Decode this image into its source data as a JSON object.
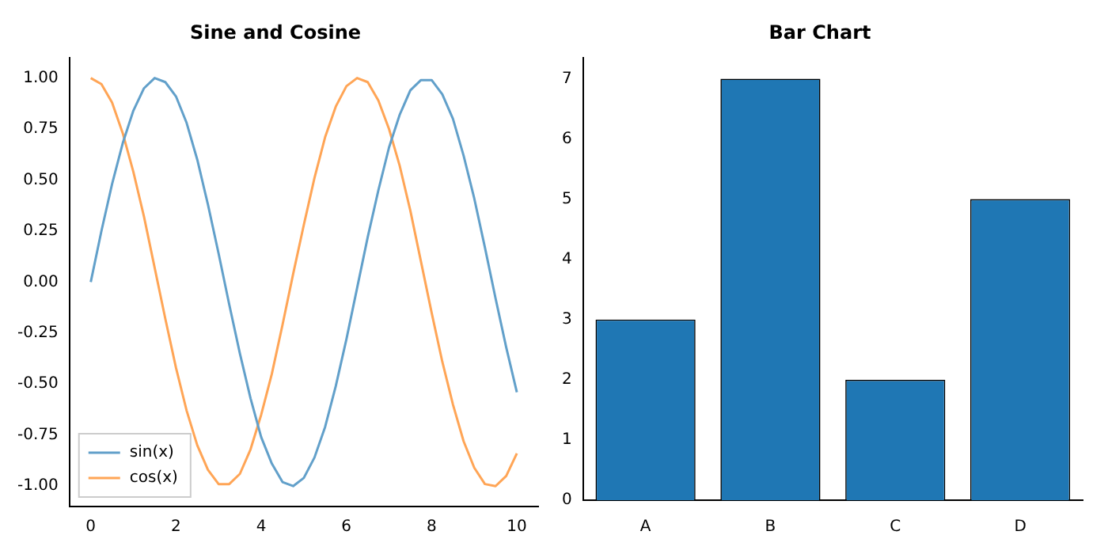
{
  "chart_data": [
    {
      "type": "line",
      "title": "Sine and Cosine",
      "x": [
        0,
        0.25,
        0.5,
        0.75,
        1,
        1.25,
        1.5,
        1.75,
        2,
        2.25,
        2.5,
        2.75,
        3,
        3.25,
        3.5,
        3.75,
        4,
        4.25,
        4.5,
        4.75,
        5,
        5.25,
        5.5,
        5.75,
        6,
        6.25,
        6.5,
        6.75,
        7,
        7.25,
        7.5,
        7.75,
        8,
        8.25,
        8.5,
        8.75,
        9,
        9.25,
        9.5,
        9.75,
        10
      ],
      "series": [
        {
          "name": "sin(x)",
          "color": "#62a0ca",
          "values": [
            0.0,
            0.25,
            0.48,
            0.68,
            0.84,
            0.95,
            1.0,
            0.98,
            0.91,
            0.78,
            0.6,
            0.38,
            0.14,
            -0.11,
            -0.35,
            -0.57,
            -0.76,
            -0.89,
            -0.98,
            -1.0,
            -0.96,
            -0.86,
            -0.71,
            -0.51,
            -0.28,
            -0.03,
            0.22,
            0.45,
            0.66,
            0.82,
            0.94,
            0.99,
            0.99,
            0.92,
            0.8,
            0.62,
            0.41,
            0.17,
            -0.08,
            -0.32,
            -0.54
          ]
        },
        {
          "name": "cos(x)",
          "color": "#ffa556",
          "values": [
            1.0,
            0.97,
            0.88,
            0.73,
            0.54,
            0.32,
            0.07,
            -0.18,
            -0.42,
            -0.63,
            -0.8,
            -0.92,
            -0.99,
            -0.99,
            -0.94,
            -0.82,
            -0.65,
            -0.45,
            -0.21,
            0.04,
            0.28,
            0.51,
            0.71,
            0.86,
            0.96,
            1.0,
            0.98,
            0.89,
            0.75,
            0.57,
            0.35,
            0.1,
            -0.15,
            -0.39,
            -0.6,
            -0.78,
            -0.91,
            -0.99,
            -1.0,
            -0.95,
            -0.84
          ]
        }
      ],
      "xlim": [
        -0.5,
        10.5
      ],
      "xticks": [
        0,
        2,
        4,
        6,
        8,
        10
      ],
      "ylim": [
        -1.1,
        1.1
      ],
      "yticks": [
        {
          "value": -1,
          "label": "-1.00"
        },
        {
          "value": -0.75,
          "label": "-0.75"
        },
        {
          "value": -0.5,
          "label": "-0.50"
        },
        {
          "value": -0.25,
          "label": "-0.25"
        },
        {
          "value": 0,
          "label": "0.00"
        },
        {
          "value": 0.25,
          "label": "0.25"
        },
        {
          "value": 0.5,
          "label": "0.50"
        },
        {
          "value": 0.75,
          "label": "0.75"
        },
        {
          "value": 1,
          "label": "1.00"
        }
      ],
      "legend": "bottom left",
      "grid": false,
      "marker": "none",
      "line_style": "solid"
    },
    {
      "type": "bar",
      "title": "Bar Chart",
      "categories": [
        "A",
        "B",
        "C",
        "D"
      ],
      "values": [
        3,
        7,
        2,
        5
      ],
      "color": "#1f77b4",
      "ylim": [
        0,
        7.35
      ],
      "yticks": [
        0,
        1,
        2,
        3,
        4,
        5,
        6,
        7
      ],
      "grid": false
    }
  ]
}
